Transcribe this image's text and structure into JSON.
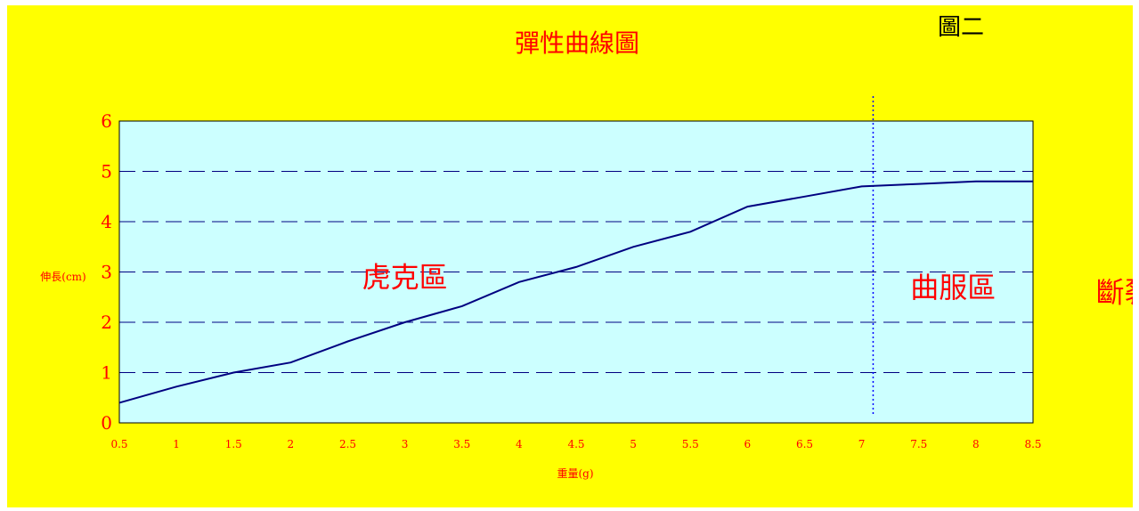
{
  "colors": {
    "background": "#ffff00",
    "plot_area": "#ccffff",
    "line": "#000080",
    "gridline": "#000080",
    "text": "#ff0000",
    "divider": "#0000ff"
  },
  "chart_data": {
    "type": "line",
    "title": "彈性曲線圖",
    "figure_label": "圖二",
    "xlabel": "重量(g)",
    "ylabel": "伸長(cm)",
    "categories": [
      "0.5",
      "1",
      "1.5",
      "2",
      "2.5",
      "3",
      "3.5",
      "4",
      "4.5",
      "5",
      "5.5",
      "6",
      "6.5",
      "7",
      "7.5",
      "8",
      "8.5"
    ],
    "x": [
      0.5,
      1,
      1.5,
      2,
      2.5,
      3,
      3.5,
      4,
      4.5,
      5,
      5.5,
      6,
      6.5,
      7,
      7.5,
      8,
      8.5
    ],
    "series": [
      {
        "values": [
          0.4,
          0.72,
          1.0,
          1.2,
          1.62,
          2.0,
          2.32,
          2.8,
          3.1,
          3.5,
          3.8,
          4.3,
          4.5,
          4.7,
          4.75,
          4.8,
          4.8
        ]
      }
    ],
    "ylim": [
      0,
      6
    ],
    "yticks": [
      0,
      1,
      2,
      3,
      4,
      5,
      6
    ],
    "grid": "horizontal dashed",
    "divider_x": 7.1,
    "annotations": [
      {
        "text": "虎克區",
        "x": 3.0,
        "y": 2.7
      },
      {
        "text": "曲服區",
        "x": 7.8,
        "y": 2.5
      },
      {
        "text": "斷裂",
        "x": 9.3,
        "y": 2.4
      }
    ]
  }
}
